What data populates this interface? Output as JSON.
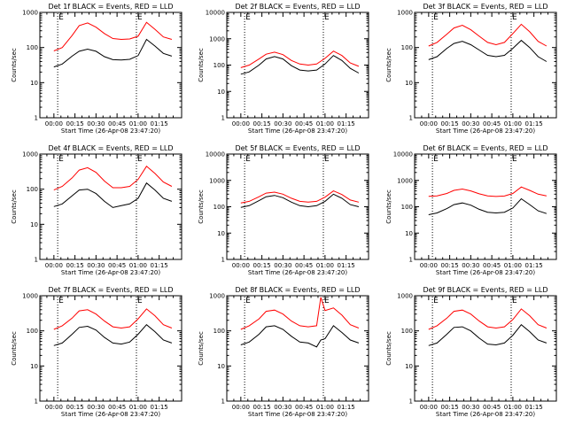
{
  "chart_data": [
    {
      "type": "line",
      "title": "Det 1f BLACK = Events, RED = LLD",
      "xlabel": "Start Time (26-Apr-08 23:47:20)",
      "ylabel": "Counts/sec",
      "ylim": [
        1,
        1000
      ],
      "xticks": [
        "00:00",
        "00:15",
        "00:30",
        "00:45",
        "01:00",
        "01:15"
      ],
      "yticks": [
        "1",
        "10",
        "100",
        "1000"
      ],
      "markers": [
        2.7,
        58.8
      ],
      "marker_label": "E",
      "x": [
        0,
        6,
        13,
        18,
        24,
        30,
        36,
        42,
        48,
        54,
        60,
        66,
        72,
        78,
        84
      ],
      "series": [
        {
          "name": "Events",
          "color": "#000000",
          "values": [
            28,
            34,
            57,
            78,
            90,
            78,
            55,
            45,
            44,
            46,
            59,
            170,
            110,
            68,
            57
          ]
        },
        {
          "name": "LLD",
          "color": "#ff0000",
          "values": [
            80,
            100,
            220,
            420,
            500,
            380,
            250,
            180,
            170,
            175,
            210,
            520,
            330,
            200,
            170
          ]
        }
      ]
    },
    {
      "type": "line",
      "title": "Det 2f BLACK = Events, RED = LLD",
      "xlabel": "Start Time (26-Apr-08 23:47:20)",
      "ylabel": "Counts/sec",
      "ylim": [
        1,
        10000
      ],
      "xticks": [
        "00:00",
        "00:15",
        "00:30",
        "00:45",
        "01:00",
        "01:15"
      ],
      "yticks": [
        "1",
        "10",
        "100",
        "1000",
        "10000"
      ],
      "markers": [
        2.7,
        58.8
      ],
      "marker_label": "E",
      "x": [
        0,
        6,
        13,
        18,
        24,
        30,
        36,
        42,
        48,
        54,
        60,
        66,
        72,
        78,
        84
      ],
      "series": [
        {
          "name": "Events",
          "color": "#000000",
          "values": [
            45,
            55,
            100,
            170,
            210,
            170,
            95,
            65,
            60,
            65,
            110,
            230,
            150,
            75,
            50
          ]
        },
        {
          "name": "LLD",
          "color": "#ff0000",
          "values": [
            80,
            100,
            170,
            260,
            310,
            250,
            150,
            110,
            100,
            110,
            180,
            340,
            230,
            120,
            90
          ]
        }
      ]
    },
    {
      "type": "line",
      "title": "Det 3f BLACK = Events, RED = LLD",
      "xlabel": "Start Time (26-Apr-08 23:47:20)",
      "ylabel": "Counts/sec",
      "ylim": [
        1,
        1000
      ],
      "xticks": [
        "00:00",
        "00:15",
        "00:30",
        "00:45",
        "01:00",
        "01:15"
      ],
      "yticks": [
        "1",
        "10",
        "100",
        "1000"
      ],
      "markers": [
        2.7,
        58.8
      ],
      "marker_label": "E",
      "x": [
        0,
        6,
        13,
        18,
        24,
        30,
        36,
        42,
        48,
        54,
        60,
        66,
        72,
        78,
        84
      ],
      "series": [
        {
          "name": "Events",
          "color": "#000000",
          "values": [
            45,
            55,
            95,
            130,
            150,
            120,
            85,
            60,
            55,
            60,
            95,
            160,
            100,
            55,
            40
          ]
        },
        {
          "name": "LLD",
          "color": "#ff0000",
          "values": [
            110,
            140,
            240,
            360,
            430,
            320,
            210,
            140,
            120,
            140,
            250,
            460,
            280,
            150,
            110
          ]
        }
      ]
    },
    {
      "type": "line",
      "title": "Det 4f BLACK = Events, RED = LLD",
      "xlabel": "Start Time (26-Apr-08 23:47:20)",
      "ylabel": "Counts/sec",
      "ylim": [
        1,
        1000
      ],
      "xticks": [
        "00:00",
        "00:15",
        "00:30",
        "00:45",
        "01:00",
        "01:15"
      ],
      "yticks": [
        "1",
        "10",
        "100",
        "1000"
      ],
      "markers": [
        2.7,
        58.8
      ],
      "marker_label": "E",
      "x": [
        0,
        6,
        13,
        18,
        24,
        30,
        36,
        42,
        48,
        54,
        60,
        66,
        72,
        78,
        84
      ],
      "series": [
        {
          "name": "Events",
          "color": "#000000",
          "values": [
            32,
            38,
            65,
            95,
            100,
            75,
            45,
            30,
            34,
            38,
            55,
            150,
            95,
            55,
            45
          ]
        },
        {
          "name": "LLD",
          "color": "#ff0000",
          "values": [
            95,
            120,
            210,
            350,
            410,
            300,
            170,
            110,
            110,
            120,
            190,
            450,
            280,
            160,
            120
          ]
        }
      ]
    },
    {
      "type": "line",
      "title": "Det 5f BLACK = Events, RED = LLD",
      "xlabel": "Start Time (26-Apr-08 23:47:20)",
      "ylabel": "Counts/sec",
      "ylim": [
        1,
        10000
      ],
      "xticks": [
        "00:00",
        "00:15",
        "00:30",
        "00:45",
        "01:00",
        "01:15"
      ],
      "yticks": [
        "1",
        "10",
        "100",
        "1000",
        "10000"
      ],
      "markers": [
        2.7,
        58.8
      ],
      "marker_label": "E",
      "x": [
        0,
        6,
        13,
        18,
        24,
        30,
        36,
        42,
        48,
        54,
        60,
        66,
        72,
        78,
        84
      ],
      "series": [
        {
          "name": "Events",
          "color": "#000000",
          "values": [
            95,
            110,
            170,
            240,
            270,
            220,
            150,
            110,
            100,
            110,
            160,
            300,
            210,
            120,
            100
          ]
        },
        {
          "name": "LLD",
          "color": "#ff0000",
          "values": [
            140,
            160,
            240,
            330,
            360,
            300,
            210,
            160,
            150,
            160,
            230,
            400,
            290,
            180,
            150
          ]
        }
      ]
    },
    {
      "type": "line",
      "title": "Det 6f BLACK = Events, RED = LLD",
      "xlabel": "Start Time (26-Apr-08 23:47:20)",
      "ylabel": "Counts/sec",
      "ylim": [
        1,
        10000
      ],
      "xticks": [
        "00:00",
        "00:15",
        "00:30",
        "00:45",
        "01:00",
        "01:15"
      ],
      "yticks": [
        "1",
        "10",
        "100",
        "1000",
        "10000"
      ],
      "markers": [
        2.7,
        58.8
      ],
      "marker_label": "E",
      "x": [
        0,
        6,
        13,
        18,
        24,
        30,
        36,
        42,
        48,
        54,
        60,
        66,
        72,
        78,
        84
      ],
      "series": [
        {
          "name": "Events",
          "color": "#000000",
          "values": [
            50,
            58,
            85,
            120,
            140,
            115,
            80,
            62,
            58,
            62,
            90,
            200,
            120,
            70,
            55
          ]
        },
        {
          "name": "LLD",
          "color": "#ff0000",
          "values": [
            250,
            260,
            320,
            420,
            470,
            400,
            310,
            260,
            245,
            255,
            320,
            560,
            420,
            300,
            260
          ]
        }
      ]
    },
    {
      "type": "line",
      "title": "Det 7f BLACK = Events, RED = LLD",
      "xlabel": "Start Time (26-Apr-08 23:47:20)",
      "ylabel": "Counts/sec",
      "ylim": [
        1,
        1000
      ],
      "xticks": [
        "00:00",
        "00:15",
        "00:30",
        "00:45",
        "01:00",
        "01:15"
      ],
      "yticks": [
        "1",
        "10",
        "100",
        "1000"
      ],
      "markers": [
        2.7,
        58.8
      ],
      "marker_label": "E",
      "x": [
        0,
        6,
        13,
        18,
        24,
        30,
        36,
        42,
        48,
        54,
        60,
        66,
        72,
        78,
        84
      ],
      "series": [
        {
          "name": "Events",
          "color": "#000000",
          "values": [
            38,
            45,
            80,
            125,
            135,
            105,
            65,
            45,
            42,
            48,
            80,
            150,
            95,
            55,
            45
          ]
        },
        {
          "name": "LLD",
          "color": "#ff0000",
          "values": [
            110,
            140,
            230,
            370,
            400,
            300,
            190,
            130,
            120,
            130,
            220,
            420,
            270,
            150,
            120
          ]
        }
      ]
    },
    {
      "type": "line",
      "title": "Det 8f BLACK = Events, RED = LLD",
      "xlabel": "Start Time (26-Apr-08 23:47:20)",
      "ylabel": "Counts/sec",
      "ylim": [
        1,
        1000
      ],
      "xticks": [
        "00:00",
        "00:15",
        "00:30",
        "00:45",
        "01:00",
        "01:15"
      ],
      "yticks": [
        "1",
        "10",
        "100",
        "1000"
      ],
      "markers": [
        2.7,
        58.8
      ],
      "marker_label": "E",
      "x": [
        0,
        6,
        13,
        18,
        24,
        30,
        36,
        42,
        48,
        54,
        57,
        60,
        66,
        72,
        78,
        84
      ],
      "series": [
        {
          "name": "Events",
          "color": "#000000",
          "values": [
            40,
            48,
            80,
            130,
            140,
            110,
            70,
            48,
            45,
            35,
            55,
            60,
            140,
            90,
            55,
            45
          ]
        },
        {
          "name": "LLD",
          "color": "#ff0000",
          "values": [
            110,
            140,
            220,
            360,
            390,
            300,
            190,
            140,
            130,
            140,
            900,
            380,
            450,
            280,
            150,
            120
          ]
        }
      ]
    },
    {
      "type": "line",
      "title": "Det 9f BLACK = Events, RED = LLD",
      "xlabel": "Start Time (26-Apr-08 23:47:20)",
      "ylabel": "Counts/sec",
      "ylim": [
        1,
        1000
      ],
      "xticks": [
        "00:00",
        "00:15",
        "00:30",
        "00:45",
        "01:00",
        "01:15"
      ],
      "yticks": [
        "1",
        "10",
        "100",
        "1000"
      ],
      "markers": [
        2.7,
        58.8
      ],
      "marker_label": "E",
      "x": [
        0,
        6,
        13,
        18,
        24,
        30,
        36,
        42,
        48,
        54,
        60,
        66,
        72,
        78,
        84
      ],
      "series": [
        {
          "name": "Events",
          "color": "#000000",
          "values": [
            38,
            45,
            80,
            125,
            130,
            100,
            62,
            42,
            40,
            45,
            75,
            150,
            95,
            55,
            45
          ]
        },
        {
          "name": "LLD",
          "color": "#ff0000",
          "values": [
            110,
            140,
            230,
            360,
            390,
            300,
            190,
            130,
            120,
            130,
            210,
            420,
            270,
            150,
            120
          ]
        }
      ]
    }
  ]
}
